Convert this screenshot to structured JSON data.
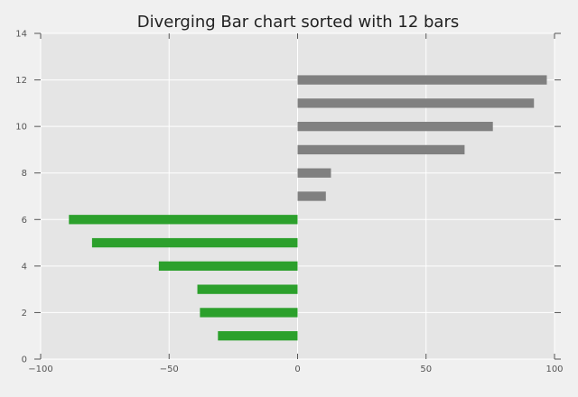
{
  "chart_data": {
    "type": "bar",
    "orientation": "horizontal",
    "title": "Diverging Bar chart sorted with 12 bars",
    "xlabel": "",
    "ylabel": "",
    "xlim": [
      -100,
      100
    ],
    "ylim": [
      0,
      14
    ],
    "x_ticks": [
      -100,
      -50,
      0,
      50,
      100
    ],
    "y_ticks": [
      0,
      2,
      4,
      6,
      8,
      10,
      12,
      14
    ],
    "grid": true,
    "legend": "none",
    "y": [
      1,
      2,
      3,
      4,
      5,
      6,
      7,
      8,
      9,
      10,
      11,
      12
    ],
    "values": [
      -31,
      -38,
      -39,
      -54,
      -80,
      -89,
      11,
      13,
      65,
      76,
      92,
      97
    ],
    "bar_height": 0.4,
    "negative_color": "#2ca02c",
    "positive_color": "#808080",
    "background_color": "#e5e5e5",
    "grid_color": "#ffffff"
  }
}
